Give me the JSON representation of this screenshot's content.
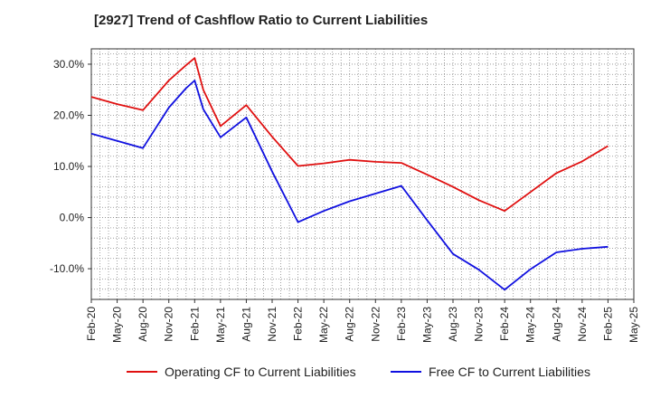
{
  "chart_data": {
    "type": "line",
    "title": "[2927]  Trend of Cashflow Ratio to Current Liabilities",
    "xlabel": "",
    "ylabel": "",
    "x_ticks": [
      "Feb-20",
      "May-20",
      "Aug-20",
      "Nov-20",
      "Feb-21",
      "May-21",
      "Aug-21",
      "Nov-21",
      "Feb-22",
      "May-22",
      "Aug-22",
      "Nov-22",
      "Feb-23",
      "May-23",
      "Aug-23",
      "Nov-23",
      "Feb-24",
      "May-24",
      "Aug-24",
      "Nov-24",
      "Feb-25",
      "May-25"
    ],
    "y_ticks": [
      "30.0%",
      "20.0%",
      "10.0%",
      "0.0%",
      "-10.0%"
    ],
    "y_tick_values": [
      30,
      20,
      10,
      0,
      -10
    ],
    "ylim": [
      -16,
      33
    ],
    "grid": true,
    "legend_position": "bottom",
    "series": [
      {
        "name": "Operating CF to Current Liabilities",
        "color": "#e01010",
        "x": [
          "2020-02",
          "2020-05",
          "2020-08",
          "2020-11",
          "2021-01",
          "2021-02",
          "2021-03",
          "2021-05",
          "2021-08",
          "2021-11",
          "2022-02",
          "2022-05",
          "2022-08",
          "2022-11",
          "2023-02",
          "2023-05",
          "2023-08",
          "2023-11",
          "2024-02",
          "2024-05",
          "2024-08",
          "2024-11",
          "2025-02"
        ],
        "values": [
          23.6,
          22.2,
          21.0,
          26.8,
          29.8,
          31.2,
          25.0,
          17.9,
          22.0,
          15.8,
          10.1,
          10.6,
          11.3,
          10.9,
          10.7,
          8.4,
          6.0,
          3.4,
          1.3,
          5.0,
          8.7,
          11.0,
          14.0
        ]
      },
      {
        "name": "Free CF to Current Liabilities",
        "color": "#1010e0",
        "x": [
          "2020-02",
          "2020-05",
          "2020-08",
          "2020-11",
          "2021-01",
          "2021-02",
          "2021-03",
          "2021-05",
          "2021-08",
          "2021-11",
          "2022-02",
          "2022-05",
          "2022-08",
          "2022-11",
          "2023-02",
          "2023-05",
          "2023-08",
          "2023-11",
          "2024-02",
          "2024-05",
          "2024-08",
          "2024-11",
          "2025-02"
        ],
        "values": [
          16.4,
          15.0,
          13.6,
          21.5,
          25.3,
          26.8,
          21.2,
          15.7,
          19.6,
          9.0,
          -0.9,
          1.3,
          3.2,
          4.7,
          6.2,
          -0.5,
          -7.1,
          -10.2,
          -14.1,
          -10.1,
          -6.8,
          -6.1,
          -5.7
        ]
      }
    ]
  },
  "colors": {
    "gridline": "#888888",
    "axis": "#333333"
  }
}
